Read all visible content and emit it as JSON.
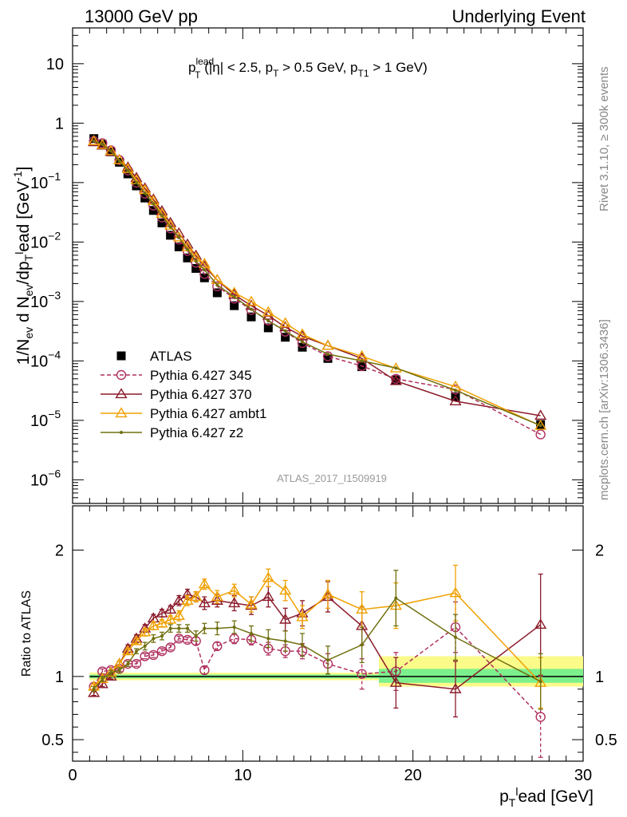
{
  "header": {
    "left": "13000 GeV pp",
    "right": "Underlying Event"
  },
  "side_labels": {
    "rivet": "Rivet 3.1.10, ≥ 300k events",
    "mcplots": "mcplots.cern.ch [arXiv:1306.3436]"
  },
  "analysis_id": "ATLAS_2017_I1509919",
  "title": {
    "p": "p",
    "sup": "lead",
    "sub": "T",
    "cuts_a": " (|η| < 2.5, p",
    "cuts_a_sub": "T",
    "cuts_b": " > 0.5 GeV, p",
    "cuts_b_sub": "T1",
    "cuts_c": " > 1 GeV)"
  },
  "upper_ylabel": "1/N_ev d N_ev/dp_T^lead [GeV^-1]",
  "ratio_ylabel": "Ratio to ATLAS",
  "xlabel": {
    "p": "p",
    "sub": "T",
    "sup": "l",
    "rest": "ead [GeV]"
  },
  "chart_data": [
    {
      "type": "scatter",
      "panel": "main",
      "y_scale": "log",
      "xlim": [
        0,
        30
      ],
      "ylim": [
        4e-07,
        40
      ],
      "y_ticks": [
        {
          "v": 1e-06,
          "base": "10",
          "exp": "−6"
        },
        {
          "v": 1e-05,
          "base": "10",
          "exp": "−5"
        },
        {
          "v": 0.0001,
          "base": "10",
          "exp": "−4"
        },
        {
          "v": 0.001,
          "base": "10",
          "exp": "−3"
        },
        {
          "v": 0.01,
          "base": "10",
          "exp": "−2"
        },
        {
          "v": 0.1,
          "base": "10",
          "exp": "−1"
        },
        {
          "v": 1,
          "base": "1",
          "exp": ""
        },
        {
          "v": 10,
          "base": "10",
          "exp": ""
        }
      ],
      "x_ticks": [
        0,
        10,
        20,
        30
      ],
      "x": [
        1.25,
        1.75,
        2.25,
        2.75,
        3.25,
        3.75,
        4.25,
        4.75,
        5.25,
        5.75,
        6.25,
        6.75,
        7.25,
        7.75,
        8.5,
        9.5,
        10.5,
        11.5,
        12.5,
        13.5,
        15,
        17,
        19,
        22.5,
        27.5
      ],
      "series": [
        {
          "name": "ATLAS",
          "color": "#000000",
          "marker": "square",
          "line": "none",
          "values": [
            0.55,
            0.44,
            0.33,
            0.22,
            0.14,
            0.088,
            0.055,
            0.034,
            0.021,
            0.013,
            0.0083,
            0.0054,
            0.0036,
            0.0025,
            0.0014,
            0.00085,
            0.00055,
            0.00036,
            0.00025,
            0.00017,
            0.00011,
            8e-05,
            4.8e-05,
            2.5e-05,
            8.5e-06
          ]
        },
        {
          "name": "Pythia 6.427 345",
          "color": "#b03060",
          "marker": "circle",
          "line": "dashed",
          "values": [
            0.5,
            0.46,
            0.35,
            0.24,
            0.16,
            0.1,
            0.065,
            0.041,
            0.026,
            0.017,
            0.011,
            0.0071,
            0.0045,
            0.0029,
            0.0018,
            0.00112,
            0.00072,
            0.00048,
            0.00031,
            0.0002,
            0.00012,
            8.2e-05,
            5e-05,
            3.3e-05,
            5.8e-06
          ]
        },
        {
          "name": "Pythia 6.427 370",
          "color": "#8b1a2a",
          "marker": "triangle",
          "line": "solid",
          "values": [
            0.48,
            0.42,
            0.33,
            0.24,
            0.18,
            0.12,
            0.08,
            0.052,
            0.033,
            0.021,
            0.014,
            0.0091,
            0.0059,
            0.0039,
            0.0023,
            0.0013,
            0.00085,
            0.00058,
            0.00037,
            0.00026,
            0.00018,
            0.00011,
            4.6e-05,
            2.1e-05,
            1.2e-05
          ]
        },
        {
          "name": "Pythia 6.427 ambt1",
          "color": "#f0a000",
          "marker": "triangle",
          "line": "solid",
          "values": [
            0.5,
            0.43,
            0.34,
            0.24,
            0.17,
            0.11,
            0.075,
            0.049,
            0.03,
            0.019,
            0.012,
            0.0082,
            0.0055,
            0.0043,
            0.0023,
            0.0014,
            0.00099,
            0.00066,
            0.00043,
            0.00028,
            0.00018,
            0.00012,
            7.5e-05,
            3.7e-05,
            8.1e-06
          ]
        },
        {
          "name": "Pythia 6.427 z2",
          "color": "#707010",
          "marker": "dot",
          "line": "solid",
          "values": [
            0.5,
            0.44,
            0.34,
            0.23,
            0.16,
            0.1,
            0.066,
            0.044,
            0.028,
            0.018,
            0.012,
            0.0075,
            0.0048,
            0.0034,
            0.0019,
            0.0012,
            0.00074,
            0.00047,
            0.00032,
            0.00021,
            0.00013,
            0.0001,
            7.6e-05,
            3.2e-05,
            8.2e-06
          ]
        }
      ]
    },
    {
      "type": "scatter",
      "panel": "ratio",
      "xlim": [
        0,
        30
      ],
      "ylim": [
        0.33,
        2.35
      ],
      "y_ticks": [
        0.5,
        1,
        2
      ],
      "x_ticks": [
        0,
        10,
        20,
        30
      ],
      "band": [
        {
          "x0": 1.0,
          "x1": 18.0,
          "inner": [
            0.985,
            1.015
          ],
          "outer": [
            0.97,
            1.03
          ]
        },
        {
          "x0": 18.0,
          "x1": 30.0,
          "inner": [
            0.95,
            1.06
          ],
          "outer": [
            0.92,
            1.16
          ]
        }
      ],
      "x": [
        1.25,
        1.75,
        2.25,
        2.75,
        3.25,
        3.75,
        4.25,
        4.75,
        5.25,
        5.75,
        6.25,
        6.75,
        7.25,
        7.75,
        8.5,
        9.5,
        10.5,
        11.5,
        12.5,
        13.5,
        15,
        17,
        19,
        22.5,
        27.5
      ],
      "series": [
        {
          "name": "Pythia 6.427 345",
          "color": "#b03060",
          "marker": "circle",
          "line": "dashed",
          "values": [
            0.92,
            1.04,
            1.05,
            1.06,
            1.1,
            1.1,
            1.16,
            1.17,
            1.2,
            1.23,
            1.3,
            1.29,
            1.28,
            1.05,
            1.24,
            1.3,
            1.29,
            1.22,
            1.2,
            1.2,
            1.1,
            1.02,
            1.04,
            1.39,
            0.68
          ],
          "errors": [
            0.02,
            0.02,
            0.02,
            0.02,
            0.02,
            0.02,
            0.02,
            0.02,
            0.02,
            0.02,
            0.02,
            0.02,
            0.03,
            0.03,
            0.03,
            0.04,
            0.04,
            0.05,
            0.05,
            0.06,
            0.08,
            0.12,
            0.15,
            0.2,
            0.32
          ]
        },
        {
          "name": "Pythia 6.427 370",
          "color": "#8b1a2a",
          "marker": "triangle",
          "line": "solid",
          "values": [
            0.87,
            0.94,
            1.0,
            1.1,
            1.22,
            1.3,
            1.38,
            1.46,
            1.5,
            1.53,
            1.6,
            1.65,
            1.63,
            1.58,
            1.6,
            1.58,
            1.56,
            1.63,
            1.45,
            1.5,
            1.63,
            1.4,
            0.95,
            0.9,
            1.41
          ],
          "errors": [
            0.02,
            0.02,
            0.02,
            0.02,
            0.03,
            0.03,
            0.03,
            0.03,
            0.03,
            0.03,
            0.04,
            0.04,
            0.04,
            0.05,
            0.05,
            0.06,
            0.07,
            0.08,
            0.09,
            0.1,
            0.12,
            0.15,
            0.2,
            0.22,
            0.4
          ]
        },
        {
          "name": "Pythia 6.427 ambt1",
          "color": "#f0a000",
          "marker": "triangle",
          "line": "solid",
          "values": [
            0.92,
            0.98,
            1.03,
            1.1,
            1.2,
            1.28,
            1.35,
            1.4,
            1.42,
            1.45,
            1.48,
            1.6,
            1.63,
            1.73,
            1.63,
            1.68,
            1.57,
            1.78,
            1.68,
            1.47,
            1.65,
            1.53,
            1.56,
            1.66,
            0.95
          ],
          "errors": [
            0.02,
            0.02,
            0.02,
            0.02,
            0.02,
            0.02,
            0.03,
            0.03,
            0.03,
            0.03,
            0.04,
            0.04,
            0.04,
            0.04,
            0.05,
            0.05,
            0.06,
            0.07,
            0.08,
            0.09,
            0.11,
            0.14,
            0.18,
            0.22,
            0.2
          ]
        },
        {
          "name": "Pythia 6.427 z2",
          "color": "#707010",
          "marker": "dot",
          "line": "solid",
          "values": [
            0.9,
            0.98,
            1.03,
            1.05,
            1.1,
            1.2,
            1.24,
            1.3,
            1.32,
            1.38,
            1.38,
            1.38,
            1.32,
            1.38,
            1.38,
            1.39,
            1.34,
            1.3,
            1.28,
            1.25,
            1.13,
            1.25,
            1.62,
            1.31,
            0.96
          ],
          "errors": [
            0.02,
            0.02,
            0.02,
            0.02,
            0.02,
            0.02,
            0.03,
            0.03,
            0.03,
            0.03,
            0.03,
            0.03,
            0.04,
            0.04,
            0.05,
            0.05,
            0.06,
            0.07,
            0.08,
            0.09,
            0.11,
            0.14,
            0.22,
            0.18,
            0.22
          ]
        }
      ]
    }
  ]
}
